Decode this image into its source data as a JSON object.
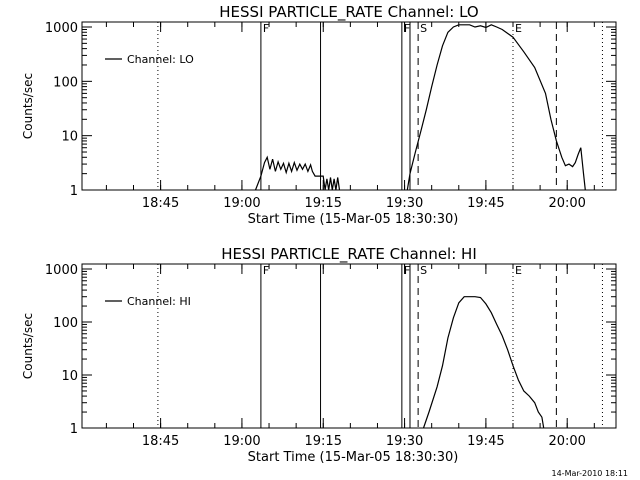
{
  "footer": {
    "timestamp": "14-Mar-2010 18:11"
  },
  "chart_data": [
    {
      "type": "line",
      "title": "HESSI PARTICLE_RATE Channel: LO",
      "xlabel": "Start Time (15-Mar-05 18:30:30)",
      "ylabel": "Counts/sec",
      "y_scale": "log",
      "ylim": [
        1,
        1000
      ],
      "y_ticks": [
        "1",
        "10",
        "100",
        "1000"
      ],
      "x_ticks": [
        "18:45",
        "19:00",
        "19:15",
        "19:30",
        "19:45",
        "20:00"
      ],
      "xlim": [
        "18:30:30",
        "20:09:00"
      ],
      "legend": {
        "position": "top-left",
        "entries": [
          "Channel: LO"
        ]
      },
      "markers": [
        {
          "time": "18:44:30",
          "style": "dotted",
          "label": ""
        },
        {
          "time": "19:03:30",
          "style": "solid",
          "label": "F"
        },
        {
          "time": "19:14:30",
          "style": "solid",
          "label": ""
        },
        {
          "time": "19:29:30",
          "style": "solid",
          "label": "F"
        },
        {
          "time": "19:31:00",
          "style": "solid",
          "label": ""
        },
        {
          "time": "19:32:30",
          "style": "dashed",
          "label": "S"
        },
        {
          "time": "19:50:00",
          "style": "dotted",
          "label": "E"
        },
        {
          "time": "19:58:00",
          "style": "dashed",
          "label": ""
        },
        {
          "time": "20:06:30",
          "style": "dotted",
          "label": ""
        }
      ],
      "series": [
        {
          "name": "Channel: LO",
          "segments": [
            [
              [
                "19:02:30",
                1
              ],
              [
                "19:03:30",
                1.8
              ],
              [
                "19:04:10",
                3.2
              ],
              [
                "19:04:40",
                4
              ],
              [
                "19:05:10",
                2.4
              ],
              [
                "19:05:40",
                3.7
              ],
              [
                "19:06:10",
                2.2
              ],
              [
                "19:06:40",
                3.3
              ],
              [
                "19:07:10",
                2.4
              ],
              [
                "19:07:40",
                3.1
              ],
              [
                "19:08:10",
                2.1
              ],
              [
                "19:08:40",
                3.1
              ],
              [
                "19:09:10",
                2.2
              ],
              [
                "19:09:40",
                3.2
              ],
              [
                "19:10:10",
                2.3
              ],
              [
                "19:10:40",
                3
              ],
              [
                "19:11:10",
                2.4
              ],
              [
                "19:11:40",
                3
              ],
              [
                "19:12:10",
                2.2
              ],
              [
                "19:12:40",
                2.9
              ],
              [
                "19:13:00",
                2.2
              ],
              [
                "19:13:30",
                1.8
              ],
              [
                "19:14:30",
                1.8
              ],
              [
                "19:15:00",
                1.8
              ],
              [
                "19:15:20",
                1
              ],
              [
                "19:15:40",
                1.6
              ],
              [
                "19:16:00",
                1
              ],
              [
                "19:16:20",
                1.7
              ],
              [
                "19:16:40",
                1
              ],
              [
                "19:17:00",
                1.6
              ],
              [
                "19:17:20",
                1
              ],
              [
                "19:17:40",
                1.7
              ],
              [
                "19:18:00",
                1
              ]
            ],
            [
              [
                "19:30:30",
                1
              ],
              [
                "19:31:00",
                2
              ],
              [
                "19:32:00",
                5
              ],
              [
                "19:33:00",
                12
              ],
              [
                "19:34:00",
                30
              ],
              [
                "19:35:00",
                80
              ],
              [
                "19:36:00",
                200
              ],
              [
                "19:37:00",
                450
              ],
              [
                "19:38:00",
                800
              ],
              [
                "19:39:00",
                1000
              ],
              [
                "19:40:00",
                1100
              ],
              [
                "19:42:00",
                1100
              ],
              [
                "19:43:00",
                1000
              ],
              [
                "19:44:00",
                1050
              ],
              [
                "19:45:00",
                980
              ],
              [
                "19:46:00",
                1100
              ],
              [
                "19:47:00",
                1000
              ],
              [
                "19:48:00",
                900
              ],
              [
                "19:50:00",
                650
              ],
              [
                "19:52:00",
                350
              ],
              [
                "19:54:00",
                180
              ],
              [
                "19:56:00",
                60
              ],
              [
                "19:57:00",
                20
              ],
              [
                "19:58:00",
                8
              ],
              [
                "19:59:00",
                4
              ],
              [
                "19:59:40",
                2.8
              ],
              [
                "20:00:20",
                3
              ],
              [
                "20:01:00",
                2.7
              ],
              [
                "20:01:30",
                3.2
              ],
              [
                "20:02:00",
                4.5
              ],
              [
                "20:02:30",
                6
              ],
              [
                "20:03:00",
                2
              ],
              [
                "20:03:20",
                1
              ]
            ]
          ]
        }
      ]
    },
    {
      "type": "line",
      "title": "HESSI PARTICLE_RATE Channel: HI",
      "xlabel": "Start Time (15-Mar-05 18:30:30)",
      "ylabel": "Counts/sec",
      "y_scale": "log",
      "ylim": [
        1,
        1000
      ],
      "y_ticks": [
        "1",
        "10",
        "100",
        "1000"
      ],
      "x_ticks": [
        "18:45",
        "19:00",
        "19:15",
        "19:30",
        "19:45",
        "20:00"
      ],
      "xlim": [
        "18:30:30",
        "20:09:00"
      ],
      "legend": {
        "position": "top-left",
        "entries": [
          "Channel: HI"
        ]
      },
      "markers": [
        {
          "time": "18:44:30",
          "style": "dotted",
          "label": ""
        },
        {
          "time": "19:03:30",
          "style": "solid",
          "label": "F"
        },
        {
          "time": "19:14:30",
          "style": "solid",
          "label": ""
        },
        {
          "time": "19:29:30",
          "style": "solid",
          "label": "F"
        },
        {
          "time": "19:31:00",
          "style": "solid",
          "label": ""
        },
        {
          "time": "19:32:30",
          "style": "dashed",
          "label": "S"
        },
        {
          "time": "19:50:00",
          "style": "dotted",
          "label": "E"
        },
        {
          "time": "19:58:00",
          "style": "dashed",
          "label": ""
        },
        {
          "time": "20:06:30",
          "style": "dotted",
          "label": ""
        }
      ],
      "series": [
        {
          "name": "Channel: HI",
          "segments": [
            [
              [
                "19:33:30",
                1
              ],
              [
                "19:34:30",
                2
              ],
              [
                "19:36:00",
                6
              ],
              [
                "19:37:00",
                15
              ],
              [
                "19:38:00",
                50
              ],
              [
                "19:39:00",
                120
              ],
              [
                "19:40:00",
                230
              ],
              [
                "19:41:00",
                300
              ],
              [
                "19:43:00",
                300
              ],
              [
                "19:44:00",
                290
              ],
              [
                "19:45:00",
                220
              ],
              [
                "19:46:00",
                150
              ],
              [
                "19:47:00",
                90
              ],
              [
                "19:48:00",
                55
              ],
              [
                "19:49:00",
                30
              ],
              [
                "19:50:00",
                15
              ],
              [
                "19:51:00",
                8
              ],
              [
                "19:52:00",
                5
              ],
              [
                "19:53:00",
                4
              ],
              [
                "19:54:00",
                3
              ],
              [
                "19:54:40",
                2
              ],
              [
                "19:55:20",
                1.6
              ],
              [
                "19:55:40",
                1
              ]
            ]
          ]
        }
      ]
    }
  ]
}
